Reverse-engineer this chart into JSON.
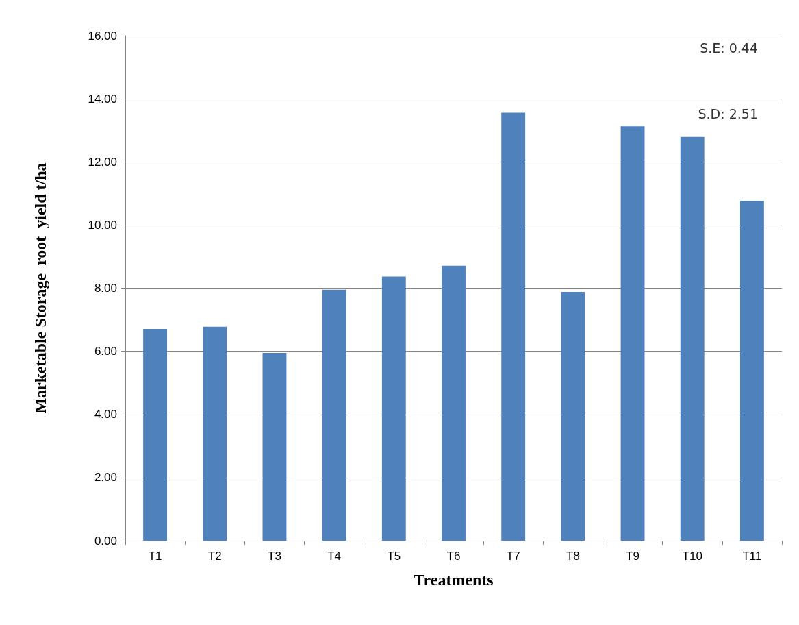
{
  "chart_data": {
    "type": "bar",
    "xlabel": "Treatments",
    "ylabel": "Marketable Storage  root  yield t/ha",
    "categories": [
      "T1",
      "T2",
      "T3",
      "T4",
      "T5",
      "T6",
      "T7",
      "T8",
      "T9",
      "T10",
      "T11"
    ],
    "values": [
      6.71,
      6.78,
      5.95,
      7.95,
      8.37,
      8.71,
      13.56,
      7.88,
      13.13,
      12.79,
      10.77
    ],
    "color": "#4f81bd",
    "ylim": [
      0,
      16
    ],
    "yticks": [
      {
        "value": 0,
        "label": "0.00"
      },
      {
        "value": 2,
        "label": "2.00"
      },
      {
        "value": 4,
        "label": "4.00"
      },
      {
        "value": 6,
        "label": "6.00"
      },
      {
        "value": 8,
        "label": "8.00"
      },
      {
        "value": 10,
        "label": "10.00"
      },
      {
        "value": 12,
        "label": "12.00"
      },
      {
        "value": 14,
        "label": "14.00"
      },
      {
        "value": 16,
        "label": "16.00"
      }
    ],
    "grid": "y",
    "annotations": [
      "S.E: 0.44",
      "S.D: 2.51"
    ]
  }
}
